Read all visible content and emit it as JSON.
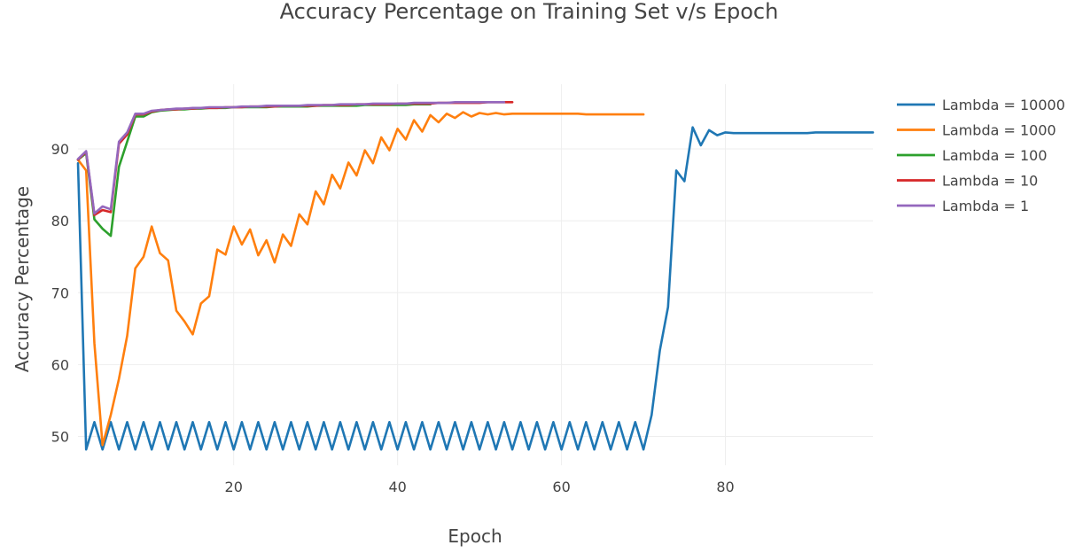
{
  "chart_data": {
    "type": "line",
    "title": "Accuracy Percentage on Training Set v/s Epoch",
    "xlabel": "Epoch",
    "ylabel": "Accuracy Percentage",
    "xlim": [
      1,
      98
    ],
    "ylim": [
      46,
      99
    ],
    "xticks": [
      20,
      40,
      60,
      80
    ],
    "yticks": [
      50,
      60,
      70,
      80,
      90
    ],
    "grid": true,
    "legend_position": "right",
    "series": [
      {
        "name": "Lambda = 10000",
        "color": "#1f77b4",
        "x": [
          1,
          2,
          3,
          4,
          5,
          6,
          7,
          8,
          9,
          10,
          11,
          12,
          13,
          14,
          15,
          16,
          17,
          18,
          19,
          20,
          21,
          22,
          23,
          24,
          25,
          26,
          27,
          28,
          29,
          30,
          31,
          32,
          33,
          34,
          35,
          36,
          37,
          38,
          39,
          40,
          41,
          42,
          43,
          44,
          45,
          46,
          47,
          48,
          49,
          50,
          51,
          52,
          53,
          54,
          55,
          56,
          57,
          58,
          59,
          60,
          61,
          62,
          63,
          64,
          65,
          66,
          67,
          68,
          69,
          70,
          71,
          72,
          73,
          74,
          75,
          76,
          77,
          78,
          79,
          80,
          81,
          82,
          83,
          84,
          85,
          86,
          87,
          88,
          89,
          90,
          91,
          92,
          93,
          94,
          95,
          96,
          97,
          98
        ],
        "y": [
          88,
          48.2,
          52,
          48.2,
          52,
          48.2,
          52,
          48.2,
          52,
          48.2,
          52,
          48.2,
          52,
          48.2,
          52,
          48.2,
          52,
          48.2,
          52,
          48.2,
          52,
          48.2,
          52,
          48.2,
          52,
          48.2,
          52,
          48.2,
          52,
          48.2,
          52,
          48.2,
          52,
          48.2,
          52,
          48.2,
          52,
          48.2,
          52,
          48.2,
          52,
          48.2,
          52,
          48.2,
          52,
          48.2,
          52,
          48.2,
          52,
          48.2,
          52,
          48.2,
          52,
          48.2,
          52,
          48.2,
          52,
          48.2,
          52,
          48.2,
          52,
          48.2,
          52,
          48.2,
          52,
          48.2,
          52,
          48.2,
          52,
          48.2,
          53,
          62,
          68,
          87,
          85.5,
          93,
          90.5,
          92.6,
          91.9,
          92.3,
          92.2,
          92.2,
          92.2,
          92.2,
          92.2,
          92.2,
          92.2,
          92.2,
          92.2,
          92.2,
          92.3,
          92.3,
          92.3,
          92.3,
          92.3,
          92.3,
          92.3,
          92.3
        ]
      },
      {
        "name": "Lambda = 1000",
        "color": "#ff7f0e",
        "x": [
          1,
          2,
          3,
          4,
          5,
          6,
          7,
          8,
          9,
          10,
          11,
          12,
          13,
          14,
          15,
          16,
          17,
          18,
          19,
          20,
          21,
          22,
          23,
          24,
          25,
          26,
          27,
          28,
          29,
          30,
          31,
          32,
          33,
          34,
          35,
          36,
          37,
          38,
          39,
          40,
          41,
          42,
          43,
          44,
          45,
          46,
          47,
          48,
          49,
          50,
          51,
          52,
          53,
          54,
          55,
          56,
          57,
          58,
          59,
          60,
          61,
          62,
          63,
          64,
          65,
          66,
          67,
          68,
          69,
          70
        ],
        "y": [
          88.5,
          87,
          63,
          48.8,
          53,
          58,
          64,
          73.4,
          75,
          79.2,
          75.5,
          74.5,
          67.5,
          66,
          64.2,
          68.5,
          69.5,
          76,
          75.3,
          79.2,
          76.7,
          78.8,
          75.2,
          77.3,
          74.2,
          78.1,
          76.5,
          80.9,
          79.5,
          84.1,
          82.3,
          86.4,
          84.5,
          88.1,
          86.3,
          89.8,
          88,
          91.6,
          89.8,
          92.8,
          91.3,
          94,
          92.4,
          94.7,
          93.7,
          94.9,
          94.3,
          95.1,
          94.5,
          95,
          94.8,
          95,
          94.8,
          94.9,
          94.9,
          94.9,
          94.9,
          94.9,
          94.9,
          94.9,
          94.9,
          94.9,
          94.8,
          94.8,
          94.8,
          94.8,
          94.8,
          94.8,
          94.8,
          94.8
        ]
      },
      {
        "name": "Lambda = 100",
        "color": "#2ca02c",
        "x": [
          1,
          2,
          3,
          4,
          5,
          6,
          7,
          8,
          9,
          10,
          11,
          12,
          13,
          14,
          15,
          16,
          17,
          18,
          19,
          20,
          21,
          22,
          23,
          24,
          25,
          26,
          27,
          28,
          29,
          30,
          31,
          32,
          33,
          34,
          35,
          36,
          37,
          38,
          39,
          40,
          41,
          42,
          43,
          44
        ],
        "y": [
          88.5,
          89.4,
          80.2,
          78.9,
          77.9,
          87.5,
          91,
          94.5,
          94.5,
          95.1,
          95.3,
          95.4,
          95.5,
          95.5,
          95.6,
          95.6,
          95.7,
          95.7,
          95.7,
          95.8,
          95.8,
          95.8,
          95.8,
          95.8,
          95.9,
          95.9,
          95.9,
          95.9,
          95.9,
          96,
          96,
          96,
          96,
          96,
          96,
          96.1,
          96.1,
          96.1,
          96.1,
          96.1,
          96.1,
          96.2,
          96.2,
          96.2
        ]
      },
      {
        "name": "Lambda = 10",
        "color": "#d62728",
        "x": [
          1,
          2,
          3,
          4,
          5,
          6,
          7,
          8,
          9,
          10,
          11,
          12,
          13,
          14,
          15,
          16,
          17,
          18,
          19,
          20,
          21,
          22,
          23,
          24,
          25,
          26,
          27,
          28,
          29,
          30,
          31,
          32,
          33,
          34,
          35,
          36,
          37,
          38,
          39,
          40,
          41,
          42,
          43,
          44,
          45,
          46,
          47,
          48,
          49,
          50,
          51,
          52,
          53,
          54
        ],
        "y": [
          88.5,
          89.6,
          80.8,
          81.5,
          81.2,
          90.7,
          92,
          94.8,
          94.8,
          95.2,
          95.4,
          95.5,
          95.5,
          95.6,
          95.6,
          95.7,
          95.7,
          95.7,
          95.8,
          95.8,
          95.8,
          95.9,
          95.9,
          95.9,
          95.9,
          96,
          96,
          96,
          96,
          96,
          96.1,
          96.1,
          96.1,
          96.1,
          96.2,
          96.2,
          96.2,
          96.2,
          96.2,
          96.3,
          96.3,
          96.3,
          96.3,
          96.3,
          96.4,
          96.4,
          96.4,
          96.4,
          96.4,
          96.4,
          96.5,
          96.5,
          96.5,
          96.5
        ]
      },
      {
        "name": "Lambda = 1",
        "color": "#9467bd",
        "x": [
          1,
          2,
          3,
          4,
          5,
          6,
          7,
          8,
          9,
          10,
          11,
          12,
          13,
          14,
          15,
          16,
          17,
          18,
          19,
          20,
          21,
          22,
          23,
          24,
          25,
          26,
          27,
          28,
          29,
          30,
          31,
          32,
          33,
          34,
          35,
          36,
          37,
          38,
          39,
          40,
          41,
          42,
          43,
          44,
          45,
          46,
          47,
          48,
          49,
          50,
          51,
          52,
          53
        ],
        "y": [
          88.6,
          89.7,
          81,
          82,
          81.6,
          91,
          92.3,
          94.9,
          94.9,
          95.3,
          95.4,
          95.5,
          95.6,
          95.6,
          95.7,
          95.7,
          95.8,
          95.8,
          95.8,
          95.8,
          95.9,
          95.9,
          95.9,
          96,
          96,
          96,
          96,
          96,
          96.1,
          96.1,
          96.1,
          96.1,
          96.2,
          96.2,
          96.2,
          96.2,
          96.3,
          96.3,
          96.3,
          96.3,
          96.3,
          96.4,
          96.4,
          96.4,
          96.4,
          96.4,
          96.5,
          96.5,
          96.5,
          96.5,
          96.5,
          96.5,
          96.5
        ]
      }
    ]
  }
}
